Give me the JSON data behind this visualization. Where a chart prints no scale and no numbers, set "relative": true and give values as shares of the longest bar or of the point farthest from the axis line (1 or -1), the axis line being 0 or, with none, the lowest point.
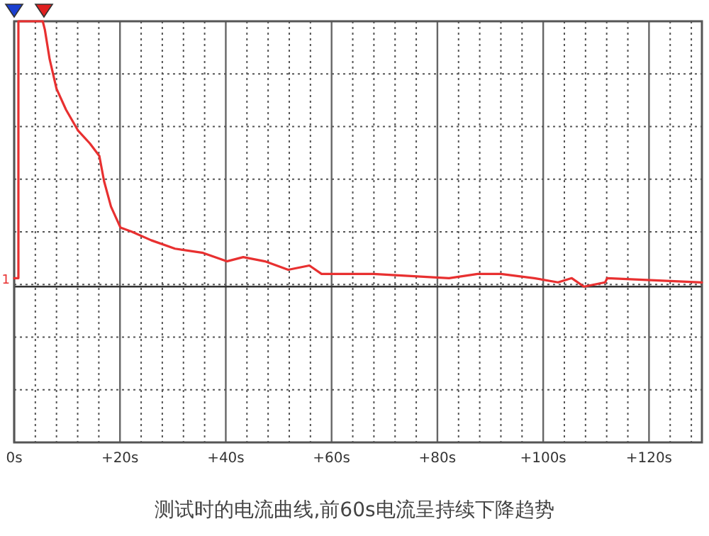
{
  "chart_data": {
    "type": "line",
    "relative": true,
    "x": [
      0,
      0.8,
      0.8,
      5.4,
      5.8,
      6.7,
      8.0,
      9.8,
      12.1,
      14.3,
      16.1,
      16.4,
      17.0,
      18.3,
      20.1,
      22.3,
      25.9,
      30.4,
      35.7,
      40.2,
      43.3,
      47.4,
      51.8,
      55.8,
      58.1,
      61.7,
      67.9,
      82.2,
      87.6,
      92,
      98.3,
      102.8,
      105.4,
      107.7,
      111.7,
      112.1,
      130
    ],
    "series": [
      {
        "color": "#e83030",
        "values": [
          0.39,
          0.39,
          1,
          1,
          0.98,
          0.91,
          0.84,
          0.79,
          0.74,
          0.71,
          0.68,
          0.66,
          0.62,
          0.56,
          0.51,
          0.5,
          0.48,
          0.46,
          0.45,
          0.43,
          0.44,
          0.43,
          0.41,
          0.42,
          0.4,
          0.4,
          0.4,
          0.39,
          0.4,
          0.4,
          0.39,
          0.38,
          0.39,
          0.37,
          0.38,
          0.39,
          0.38
        ]
      }
    ],
    "xlim": [
      0,
      130
    ],
    "xticks": [
      {
        "value": 0,
        "label": "0s"
      },
      {
        "value": 20,
        "label": "+20s"
      },
      {
        "value": 40,
        "label": "+40s"
      },
      {
        "value": 60,
        "label": "+60s"
      },
      {
        "value": 80,
        "label": "+80s"
      },
      {
        "value": 100,
        "label": "+100s"
      },
      {
        "value": 120,
        "label": "+120s"
      }
    ],
    "grid": true,
    "ref_lines": [
      {
        "axis": "y",
        "value": 0.37,
        "color": "#333333"
      }
    ],
    "annotations": [
      {
        "text": "1",
        "x": 0,
        "y": 0.37
      },
      "测试时的电流曲线,前60s电流呈持续下降趋势"
    ]
  }
}
